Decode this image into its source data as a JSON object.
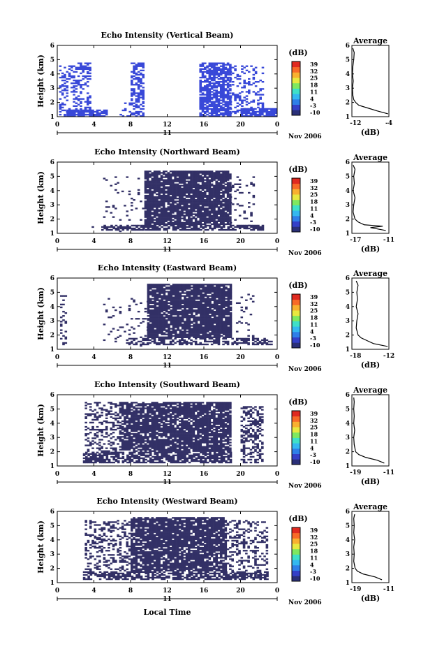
{
  "x_axis_label": "Local Time",
  "date_label": "Nov 2006",
  "day_label": "11",
  "colorbar_unit": "(dB)",
  "colorbar_ticks": [
    "39",
    "32",
    "25",
    "18",
    "11",
    "4",
    "-3",
    "-10"
  ],
  "colorbar_colors": [
    "#2a2f78",
    "#3440c8",
    "#2f7fe8",
    "#34b8f0",
    "#3fe0c8",
    "#7fe860",
    "#e8e840",
    "#f8b030",
    "#f86a28",
    "#e02a20"
  ],
  "echo_color": "#323066",
  "vertical_echo_color": "#3848d8",
  "chart_data": [
    {
      "type": "heatmap",
      "title": "Echo Intensity (Vertical Beam)",
      "xlabel": "",
      "ylabel": "Height (km)",
      "xlim": [
        0,
        24
      ],
      "ylim": [
        1,
        6
      ],
      "x_ticks": [
        "0",
        "4",
        "8",
        "12",
        "16",
        "20",
        "0"
      ],
      "y_ticks": [
        "1",
        "2",
        "3",
        "4",
        "5",
        "6"
      ],
      "echo_blocks": [
        {
          "t": [
            0.2,
            3.5
          ],
          "h": [
            1.0,
            4.6
          ],
          "density": 0.35
        },
        {
          "t": [
            1.0,
            5.3
          ],
          "h": [
            1.0,
            1.5
          ],
          "density": 0.85
        },
        {
          "t": [
            2.2,
            3.6
          ],
          "h": [
            4.3,
            4.8
          ],
          "density": 0.5
        },
        {
          "t": [
            8.0,
            9.5
          ],
          "h": [
            1.0,
            4.8
          ],
          "density": 0.55
        },
        {
          "t": [
            6.8,
            8.0
          ],
          "h": [
            1.0,
            2.0
          ],
          "density": 0.2
        },
        {
          "t": [
            15.5,
            18.8
          ],
          "h": [
            1.0,
            4.8
          ],
          "density": 0.7
        },
        {
          "t": [
            18.8,
            22.5
          ],
          "h": [
            1.0,
            4.6
          ],
          "density": 0.25
        },
        {
          "t": [
            20.0,
            23.8
          ],
          "h": [
            1.0,
            1.6
          ],
          "density": 0.8
        }
      ],
      "avg_title": "Average",
      "avg_xlabel": "(dB)",
      "avg_xlim": [
        -12,
        -4
      ],
      "avg_x_ticks": [
        "-12",
        "-4"
      ],
      "avg_height": [
        1.2,
        1.4,
        1.6,
        1.8,
        2.0,
        2.2,
        2.5,
        3.0,
        3.5,
        4.0,
        4.5,
        5.0,
        5.5,
        5.8
      ],
      "avg_value": [
        -4.2,
        -6.5,
        -8.5,
        -10.5,
        -11.2,
        -11.6,
        -11.8,
        -11.9,
        -11.7,
        -11.9,
        -11.8,
        -11.6,
        -11.5,
        -11.8
      ]
    },
    {
      "type": "heatmap",
      "title": "Echo Intensity (Northward Beam)",
      "xlabel": "",
      "ylabel": "Height (km)",
      "xlim": [
        0,
        24
      ],
      "ylim": [
        1,
        6
      ],
      "x_ticks": [
        "0",
        "4",
        "8",
        "12",
        "16",
        "20",
        "0"
      ],
      "y_ticks": [
        "1",
        "2",
        "3",
        "4",
        "5",
        "6"
      ],
      "echo_blocks": [
        {
          "t": [
            9.5,
            18.8
          ],
          "h": [
            1.6,
            5.4
          ],
          "density": 0.88
        },
        {
          "t": [
            5.0,
            9.5
          ],
          "h": [
            1.0,
            5.0
          ],
          "density": 0.06
        },
        {
          "t": [
            4.8,
            22.5
          ],
          "h": [
            1.2,
            1.6
          ],
          "density": 0.7
        },
        {
          "t": [
            18.8,
            21.5
          ],
          "h": [
            1.2,
            5.0
          ],
          "density": 0.12
        },
        {
          "t": [
            0.5,
            4.5
          ],
          "h": [
            1.2,
            1.5
          ],
          "density": 0.05
        }
      ],
      "avg_title": "Average",
      "avg_xlabel": "(dB)",
      "avg_xlim": [
        -17,
        -11
      ],
      "avg_x_ticks": [
        "-17",
        "-11"
      ],
      "avg_height": [
        1.2,
        1.4,
        1.5,
        1.6,
        1.8,
        2.0,
        2.5,
        3.0,
        3.5,
        4.0,
        4.5,
        5.0,
        5.5,
        5.8
      ],
      "avg_value": [
        -11.5,
        -14.0,
        -12.0,
        -15.0,
        -16.0,
        -16.5,
        -16.8,
        -16.7,
        -16.5,
        -16.8,
        -16.6,
        -16.7,
        -16.5,
        -16.8
      ]
    },
    {
      "type": "heatmap",
      "title": "Echo Intensity (Eastward Beam)",
      "xlabel": "",
      "ylabel": "Height (km)",
      "xlim": [
        0,
        24
      ],
      "ylim": [
        1,
        6
      ],
      "x_ticks": [
        "0",
        "4",
        "8",
        "12",
        "16",
        "20",
        "0"
      ],
      "y_ticks": [
        "1",
        "2",
        "3",
        "4",
        "5",
        "6"
      ],
      "echo_blocks": [
        {
          "t": [
            9.8,
            19.0
          ],
          "h": [
            1.8,
            5.6
          ],
          "density": 0.88
        },
        {
          "t": [
            5.0,
            9.8
          ],
          "h": [
            1.2,
            4.8
          ],
          "density": 0.08
        },
        {
          "t": [
            0.3,
            1.0
          ],
          "h": [
            1.3,
            4.8
          ],
          "density": 0.25
        },
        {
          "t": [
            7.5,
            23.5
          ],
          "h": [
            1.3,
            1.8
          ],
          "density": 0.55
        },
        {
          "t": [
            19.5,
            21.5
          ],
          "h": [
            1.5,
            5.0
          ],
          "density": 0.1
        }
      ],
      "avg_title": "Average",
      "avg_xlabel": "(dB)",
      "avg_xlim": [
        -18,
        -12
      ],
      "avg_x_ticks": [
        "-18",
        "-12"
      ],
      "avg_height": [
        1.2,
        1.4,
        1.6,
        1.8,
        2.0,
        2.5,
        3.0,
        3.5,
        4.0,
        4.5,
        5.0,
        5.5,
        5.8
      ],
      "avg_value": [
        -12.2,
        -14.5,
        -15.5,
        -16.5,
        -17.0,
        -17.3,
        -17.2,
        -17.0,
        -17.3,
        -17.1,
        -17.2,
        -17.0,
        -17.3
      ]
    },
    {
      "type": "heatmap",
      "title": "Echo Intensity (Southward Beam)",
      "xlabel": "",
      "ylabel": "Height (km)",
      "xlim": [
        0,
        24
      ],
      "ylim": [
        1,
        6
      ],
      "x_ticks": [
        "0",
        "4",
        "8",
        "12",
        "16",
        "20",
        "0"
      ],
      "y_ticks": [
        "1",
        "2",
        "3",
        "4",
        "5",
        "6"
      ],
      "echo_blocks": [
        {
          "t": [
            7.0,
            19.0
          ],
          "h": [
            2.0,
            5.5
          ],
          "density": 0.85
        },
        {
          "t": [
            3.0,
            7.0
          ],
          "h": [
            1.8,
            5.5
          ],
          "density": 0.35
        },
        {
          "t": [
            2.8,
            19.0
          ],
          "h": [
            1.2,
            2.0
          ],
          "density": 0.75
        },
        {
          "t": [
            20.0,
            22.5
          ],
          "h": [
            1.2,
            5.2
          ],
          "density": 0.45
        }
      ],
      "avg_title": "Average",
      "avg_xlabel": "(dB)",
      "avg_xlim": [
        -19,
        -11
      ],
      "avg_x_ticks": [
        "-19",
        "-11"
      ],
      "avg_height": [
        1.2,
        1.4,
        1.6,
        1.8,
        2.0,
        2.5,
        3.0,
        3.5,
        4.0,
        4.5,
        5.0,
        5.5,
        5.8
      ],
      "avg_value": [
        -12.0,
        -13.5,
        -16.0,
        -17.5,
        -18.2,
        -18.5,
        -18.6,
        -18.4,
        -18.6,
        -18.5,
        -18.6,
        -18.5,
        -18.6
      ]
    },
    {
      "type": "heatmap",
      "title": "Echo Intensity (Westward Beam)",
      "xlabel": "Local Time",
      "ylabel": "Height (km)",
      "xlim": [
        0,
        24
      ],
      "ylim": [
        1,
        6
      ],
      "x_ticks": [
        "0",
        "4",
        "8",
        "12",
        "16",
        "20",
        "0"
      ],
      "y_ticks": [
        "1",
        "2",
        "3",
        "4",
        "5",
        "6"
      ],
      "echo_blocks": [
        {
          "t": [
            8.0,
            18.5
          ],
          "h": [
            1.8,
            5.6
          ],
          "density": 0.85
        },
        {
          "t": [
            3.0,
            8.0
          ],
          "h": [
            1.8,
            5.4
          ],
          "density": 0.35
        },
        {
          "t": [
            2.8,
            23.0
          ],
          "h": [
            1.2,
            1.8
          ],
          "density": 0.65
        },
        {
          "t": [
            18.5,
            22.8
          ],
          "h": [
            1.3,
            5.4
          ],
          "density": 0.3
        }
      ],
      "avg_title": "Average",
      "avg_xlabel": "(dB)",
      "avg_xlim": [
        -19,
        -11
      ],
      "avg_x_ticks": [
        "-19",
        "-11"
      ],
      "avg_height": [
        1.2,
        1.4,
        1.6,
        1.8,
        2.0,
        2.5,
        3.0,
        3.5,
        4.0,
        4.5,
        5.0,
        5.5,
        5.8
      ],
      "avg_value": [
        -12.5,
        -14.0,
        -16.5,
        -17.8,
        -18.3,
        -18.6,
        -18.5,
        -18.6,
        -18.4,
        -18.6,
        -18.5,
        -18.6,
        -18.4
      ]
    }
  ]
}
